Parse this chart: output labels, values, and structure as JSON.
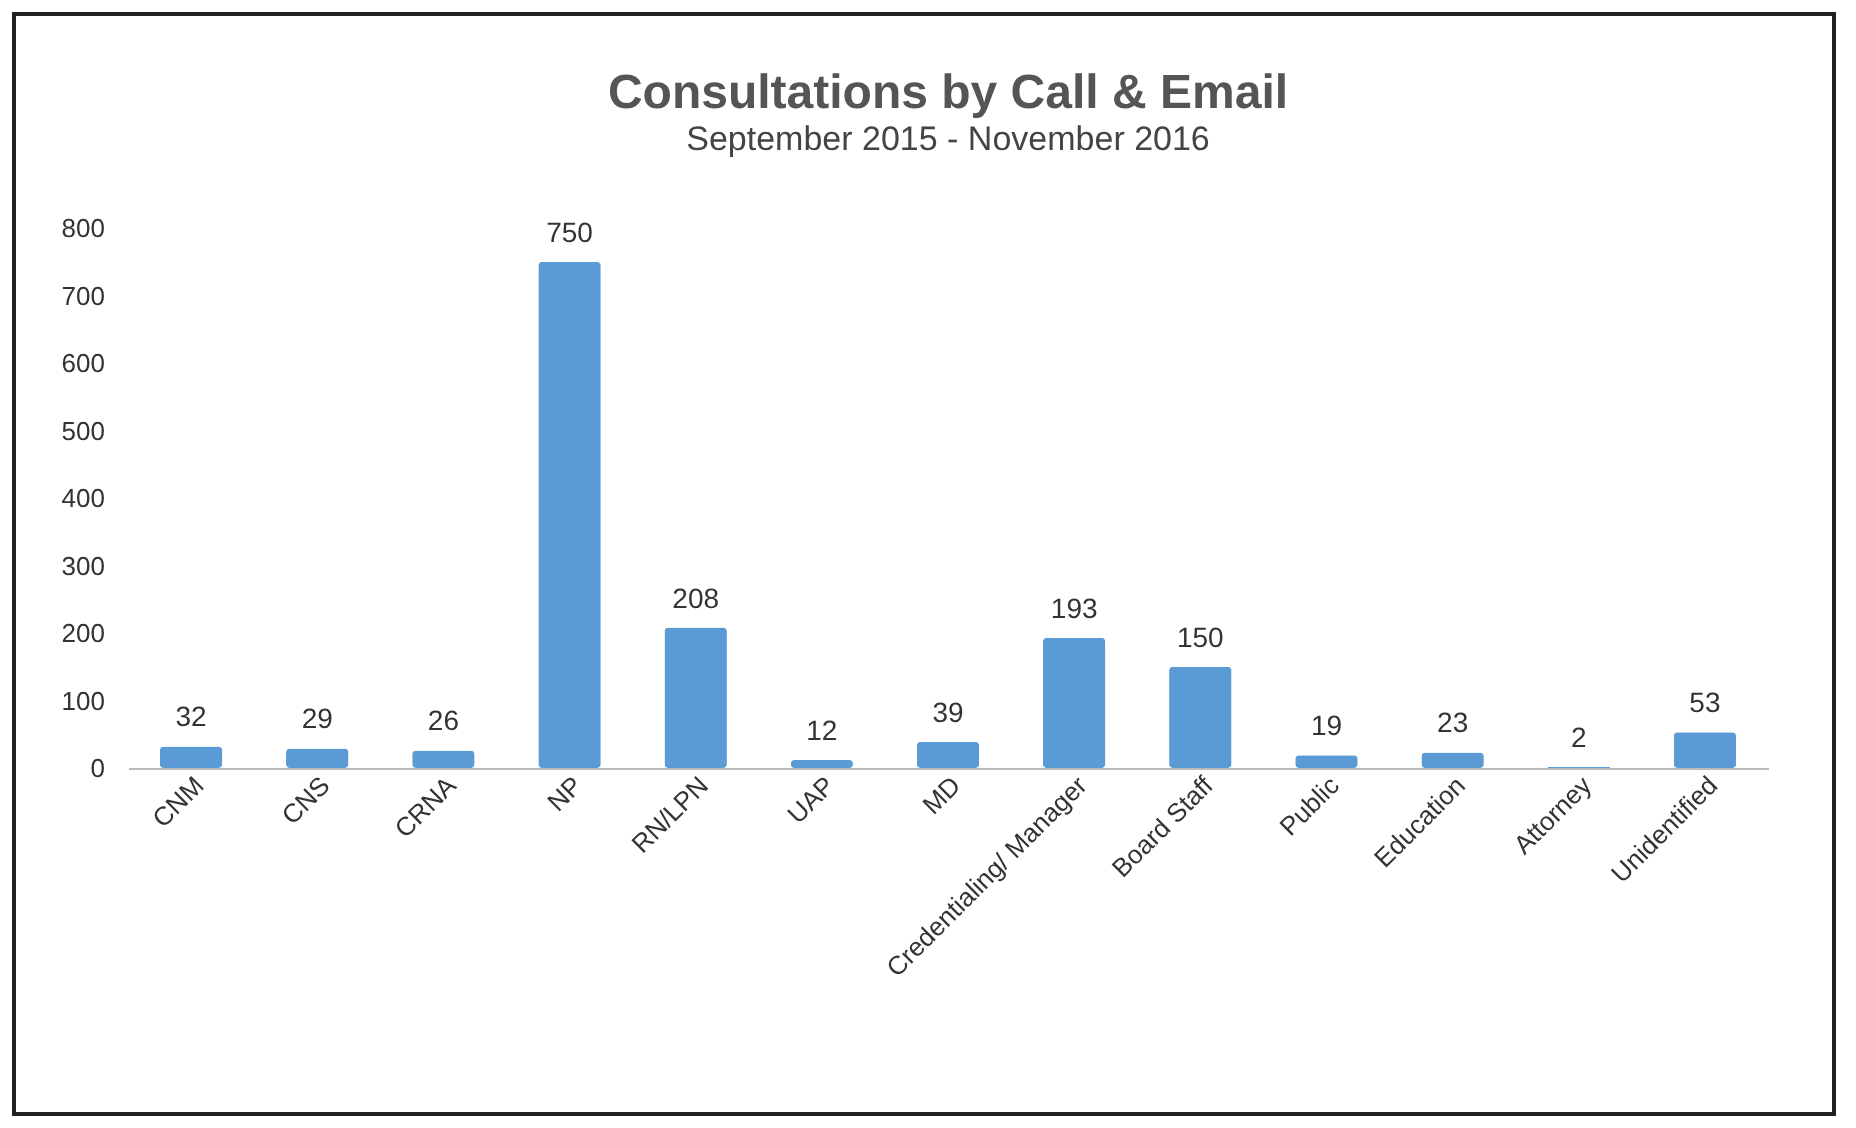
{
  "chart_data": {
    "type": "bar",
    "title": "Consultations by Call & Email",
    "subtitle": "September 2015 - November 2016",
    "categories": [
      "CNM",
      "CNS",
      "CRNA",
      "NP",
      "RN/LPN",
      "UAP",
      "MD",
      "Credentialing/ Manager",
      "Board Staff",
      "Public",
      "Education",
      "Attorney",
      "Unidentified"
    ],
    "values": [
      32,
      29,
      26,
      750,
      208,
      12,
      39,
      193,
      150,
      19,
      23,
      2,
      53
    ],
    "color": "#5b9bd5",
    "ylim": [
      0,
      800
    ],
    "yticks": [
      0,
      100,
      200,
      300,
      400,
      500,
      600,
      700,
      800
    ],
    "grid": false,
    "data_labels": true
  }
}
